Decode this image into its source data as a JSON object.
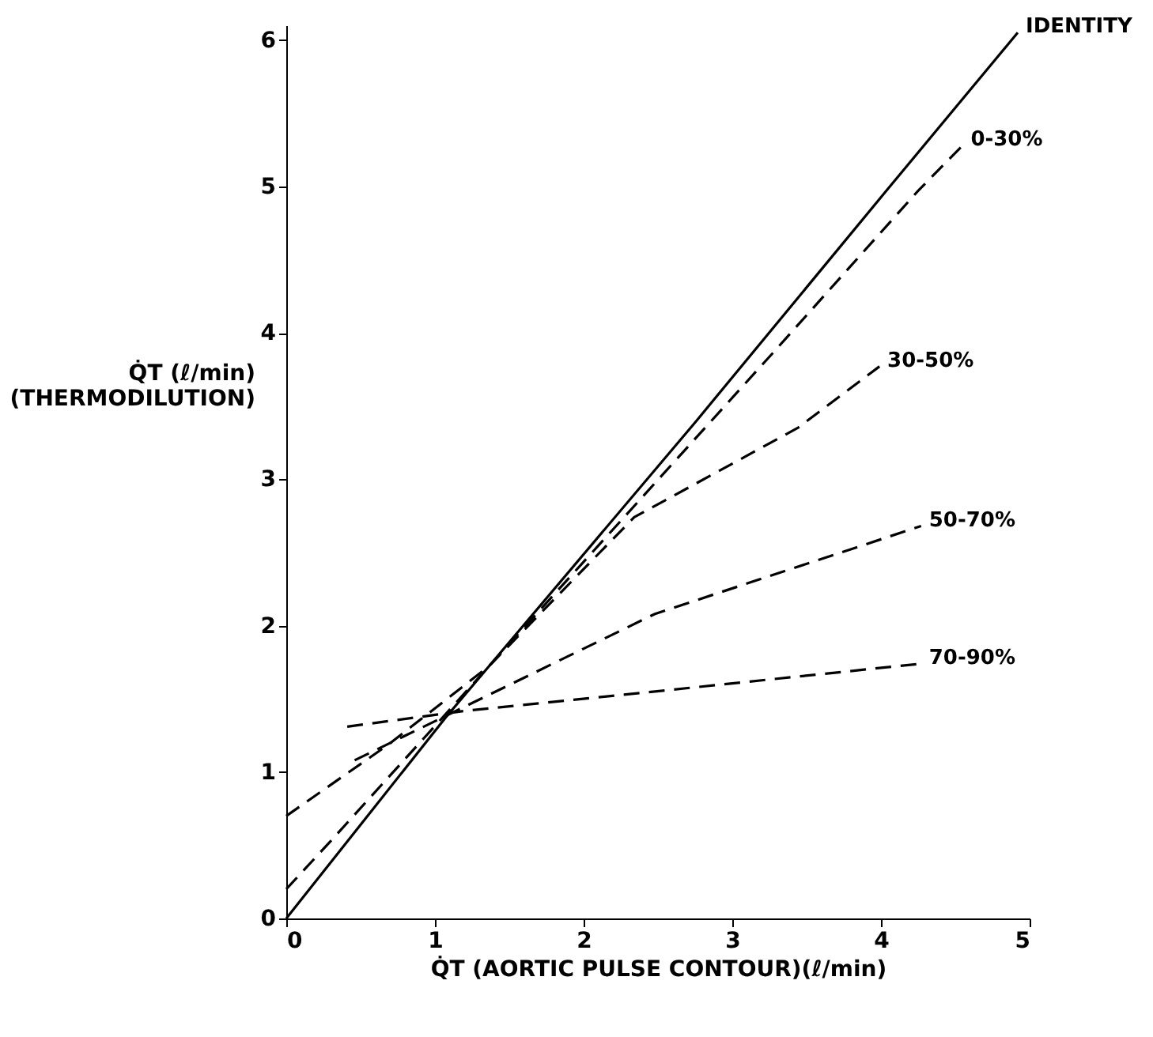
{
  "chart_data": {
    "type": "line",
    "xlabel": "Q̇T (AORTIC PULSE CONTOUR)(ℓ/min)",
    "ylabel": "Q̇T (ℓ/min)\n(THERMODILUTION)",
    "xlim": [
      0,
      5
    ],
    "ylim": [
      0,
      6.1
    ],
    "xticks": [
      0,
      1,
      2,
      3,
      4,
      5
    ],
    "yticks": [
      0,
      1,
      2,
      3,
      4,
      5,
      6
    ],
    "grid": false,
    "series": [
      {
        "name": "IDENTITY",
        "color": "#000000",
        "line_style": "solid",
        "x": [
          0,
          1.07,
          2.76,
          4.02,
          4.92
        ],
        "values": [
          0,
          1.37,
          3.4,
          4.95,
          6.05
        ]
      },
      {
        "name": "0-30%",
        "color": "#000000",
        "line_style": "dashed",
        "x": [
          0,
          0.3,
          3.28,
          4.25,
          4.55
        ],
        "values": [
          0.2,
          0.53,
          3.87,
          4.97,
          5.28
        ]
      },
      {
        "name": "30-50%",
        "color": "#000000",
        "line_style": "dashed",
        "x": [
          0,
          0.69,
          1.36,
          2.34,
          3.44,
          3.99
        ],
        "values": [
          0.7,
          1.19,
          1.72,
          2.74,
          3.35,
          3.77
        ]
      },
      {
        "name": "50-70%",
        "color": "#000000",
        "line_style": "dashed",
        "x": [
          0.46,
          2.48,
          4.27
        ],
        "values": [
          1.08,
          2.08,
          2.68
        ]
      },
      {
        "name": "70-90%",
        "color": "#000000",
        "line_style": "dashed",
        "x": [
          0.41,
          1.22,
          2.48,
          4.27
        ],
        "values": [
          1.31,
          1.42,
          1.55,
          1.74
        ]
      }
    ]
  }
}
